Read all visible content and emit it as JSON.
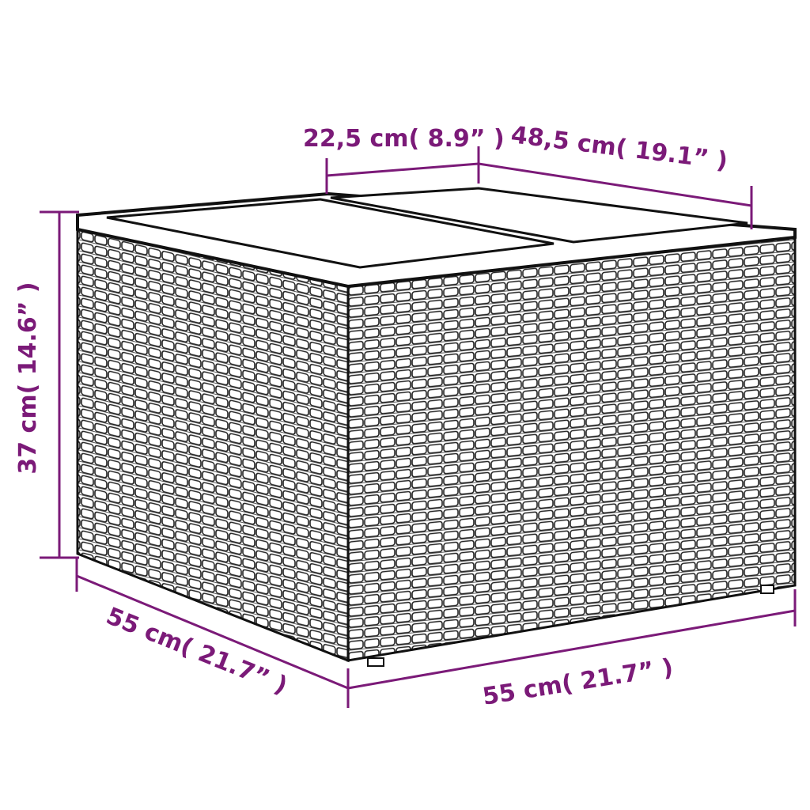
{
  "colors": {
    "dimension": "#7b1a78",
    "outline": "#1a1a1a"
  },
  "dimensions": {
    "top_width": "22,5 cm( 8.9”  )",
    "top_depth": "48,5 cm( 19.1”  )",
    "height": "37 cm( 14.6”  )",
    "depth": "55 cm( 21.7”  )",
    "width": "55 cm( 21.7”  )"
  }
}
